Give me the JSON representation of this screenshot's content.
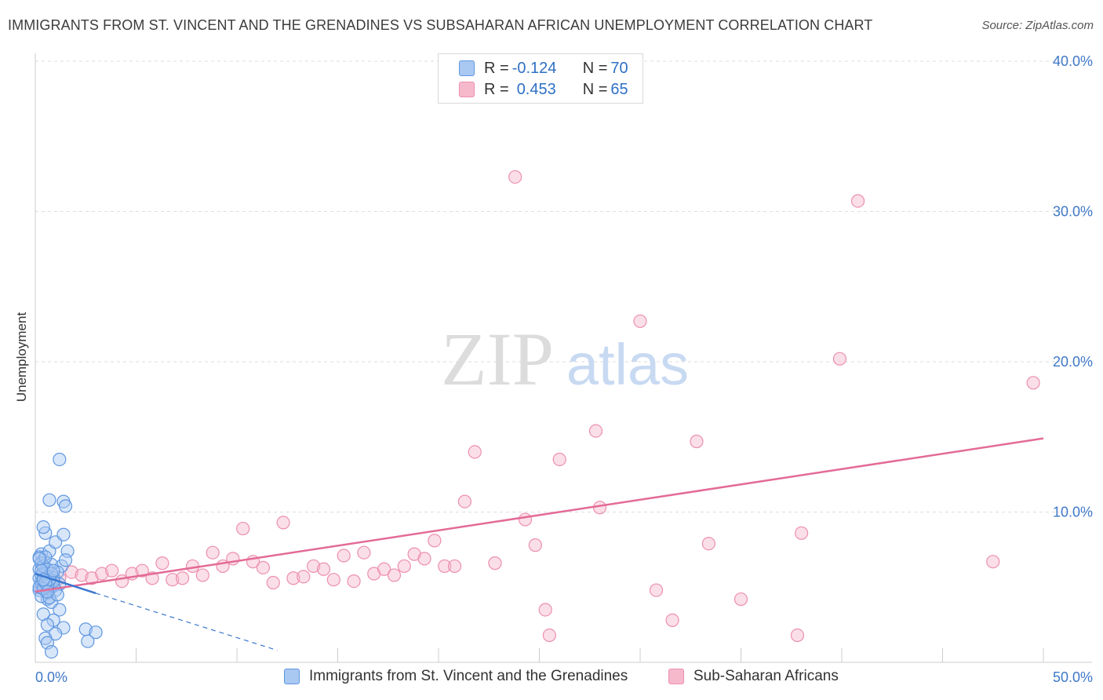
{
  "title": "IMMIGRANTS FROM ST. VINCENT AND THE GRENADINES VS SUBSAHARAN AFRICAN UNEMPLOYMENT CORRELATION CHART",
  "source": "Source: ZipAtlas.com",
  "watermark": {
    "zip": "ZIP",
    "atlas": "atlas"
  },
  "legend_top": {
    "rows": [
      {
        "r_label": "R = ",
        "r_value": "-0.124",
        "n_label": "N = ",
        "n_value": "70"
      },
      {
        "r_label": "R = ",
        "r_value": "0.453",
        "n_label": "N = ",
        "n_value": "65"
      }
    ]
  },
  "legend_bottom": {
    "items": [
      {
        "label": "Immigrants from St. Vincent and the Grenadines"
      },
      {
        "label": "Sub-Saharan Africans"
      }
    ]
  },
  "colors": {
    "blue_fill": "#a9c8f2",
    "blue_stroke": "#5f97e0",
    "blue_line": "#3a78d0",
    "pink_fill": "#f6b9cc",
    "pink_stroke": "#ec8fae",
    "pink_line": "#e36b97",
    "axis_text": "#3f78c8",
    "grid": "#dddddd"
  },
  "chart_data": {
    "type": "scatter",
    "title": "IMMIGRANTS FROM ST. VINCENT AND THE GRENADINES VS SUBSAHARAN AFRICAN UNEMPLOYMENT CORRELATION CHART",
    "xlabel": "",
    "ylabel": "Unemployment",
    "xlim": [
      0,
      50
    ],
    "ylim": [
      0,
      40
    ],
    "x_tick_labels": [
      "0.0%",
      "50.0%"
    ],
    "y_ticks": [
      10,
      20,
      30,
      40
    ],
    "y_tick_labels": [
      "10.0%",
      "20.0%",
      "30.0%",
      "40.0%"
    ],
    "grid": true,
    "legend_placement": "bottom",
    "series": [
      {
        "name": "Immigrants from St. Vincent and the Grenadines",
        "r": -0.124,
        "n": 70,
        "trend": {
          "x": [
            0,
            3.0
          ],
          "y": [
            5.9,
            4.6
          ]
        },
        "trend_extension": {
          "x": [
            3.0,
            12.0
          ],
          "y": [
            4.6,
            0.8
          ]
        },
        "points": [
          [
            0.3,
            5.4
          ],
          [
            0.5,
            5.8
          ],
          [
            0.2,
            6.2
          ],
          [
            0.8,
            5.0
          ],
          [
            0.6,
            4.6
          ],
          [
            0.4,
            6.8
          ],
          [
            1.2,
            5.2
          ],
          [
            0.3,
            7.2
          ],
          [
            0.7,
            7.4
          ],
          [
            0.5,
            8.6
          ],
          [
            0.4,
            9.0
          ],
          [
            1.0,
            8.0
          ],
          [
            1.4,
            8.5
          ],
          [
            1.6,
            7.4
          ],
          [
            1.3,
            6.4
          ],
          [
            1.1,
            6.0
          ],
          [
            0.9,
            5.6
          ],
          [
            0.2,
            4.8
          ],
          [
            0.6,
            4.2
          ],
          [
            0.8,
            4.0
          ],
          [
            1.2,
            3.5
          ],
          [
            0.4,
            3.2
          ],
          [
            0.9,
            2.8
          ],
          [
            0.6,
            2.5
          ],
          [
            1.4,
            2.3
          ],
          [
            1.0,
            1.9
          ],
          [
            0.5,
            1.6
          ],
          [
            0.6,
            1.3
          ],
          [
            0.8,
            0.7
          ],
          [
            2.5,
            2.2
          ],
          [
            3.0,
            2.0
          ],
          [
            2.6,
            1.4
          ],
          [
            1.2,
            13.5
          ],
          [
            0.7,
            10.8
          ],
          [
            1.4,
            10.7
          ],
          [
            1.5,
            10.4
          ],
          [
            0.3,
            5.2
          ],
          [
            0.5,
            5.0
          ],
          [
            0.2,
            5.6
          ],
          [
            0.4,
            6.0
          ],
          [
            0.6,
            6.2
          ],
          [
            0.8,
            5.3
          ],
          [
            1.0,
            4.8
          ],
          [
            0.3,
            4.4
          ],
          [
            0.7,
            4.9
          ],
          [
            0.9,
            5.1
          ],
          [
            0.2,
            7.0
          ],
          [
            0.3,
            6.6
          ],
          [
            0.4,
            5.9
          ],
          [
            0.5,
            5.4
          ],
          [
            0.6,
            5.7
          ],
          [
            0.7,
            4.3
          ],
          [
            0.8,
            6.5
          ],
          [
            0.9,
            5.4
          ],
          [
            1.1,
            4.5
          ],
          [
            0.2,
            5.0
          ],
          [
            0.3,
            5.8
          ],
          [
            0.4,
            6.4
          ],
          [
            0.5,
            7.0
          ],
          [
            0.6,
            5.1
          ],
          [
            0.7,
            5.5
          ],
          [
            0.8,
            5.9
          ],
          [
            0.3,
            6.1
          ],
          [
            0.4,
            4.9
          ],
          [
            0.5,
            5.3
          ],
          [
            0.2,
            6.9
          ],
          [
            0.6,
            4.7
          ],
          [
            1.5,
            6.8
          ],
          [
            0.9,
            6.1
          ],
          [
            0.4,
            5.5
          ]
        ]
      },
      {
        "name": "Sub-Saharan Africans",
        "r": 0.453,
        "n": 65,
        "trend": {
          "x": [
            0,
            50
          ],
          "y": [
            4.7,
            14.9
          ]
        },
        "points": [
          [
            0.3,
            5.0
          ],
          [
            0.8,
            5.4
          ],
          [
            1.2,
            5.6
          ],
          [
            1.8,
            6.0
          ],
          [
            2.3,
            5.8
          ],
          [
            2.8,
            5.6
          ],
          [
            3.3,
            5.9
          ],
          [
            3.8,
            6.1
          ],
          [
            4.3,
            5.4
          ],
          [
            4.8,
            5.9
          ],
          [
            5.3,
            6.1
          ],
          [
            5.8,
            5.6
          ],
          [
            6.3,
            6.6
          ],
          [
            6.8,
            5.5
          ],
          [
            7.3,
            5.6
          ],
          [
            7.8,
            6.4
          ],
          [
            8.3,
            5.8
          ],
          [
            8.8,
            7.3
          ],
          [
            9.3,
            6.4
          ],
          [
            9.8,
            6.9
          ],
          [
            10.3,
            8.9
          ],
          [
            10.8,
            6.7
          ],
          [
            11.3,
            6.3
          ],
          [
            11.8,
            5.3
          ],
          [
            12.3,
            9.3
          ],
          [
            12.8,
            5.6
          ],
          [
            13.3,
            5.7
          ],
          [
            13.8,
            6.4
          ],
          [
            14.3,
            6.2
          ],
          [
            14.8,
            5.5
          ],
          [
            15.3,
            7.1
          ],
          [
            15.8,
            5.4
          ],
          [
            16.3,
            7.3
          ],
          [
            16.8,
            5.9
          ],
          [
            17.3,
            6.2
          ],
          [
            17.8,
            5.8
          ],
          [
            18.3,
            6.4
          ],
          [
            18.8,
            7.2
          ],
          [
            19.3,
            6.9
          ],
          [
            19.8,
            8.1
          ],
          [
            20.3,
            6.4
          ],
          [
            20.8,
            6.4
          ],
          [
            21.3,
            10.7
          ],
          [
            21.8,
            14.0
          ],
          [
            22.8,
            6.6
          ],
          [
            23.8,
            32.3
          ],
          [
            24.3,
            9.5
          ],
          [
            24.8,
            7.8
          ],
          [
            25.3,
            3.5
          ],
          [
            25.5,
            1.8
          ],
          [
            26.0,
            13.5
          ],
          [
            27.8,
            15.4
          ],
          [
            28.0,
            10.3
          ],
          [
            30.0,
            22.7
          ],
          [
            30.8,
            4.8
          ],
          [
            31.6,
            2.8
          ],
          [
            32.8,
            14.7
          ],
          [
            33.4,
            7.9
          ],
          [
            35.0,
            4.2
          ],
          [
            38.0,
            8.6
          ],
          [
            37.8,
            1.8
          ],
          [
            39.9,
            20.2
          ],
          [
            40.8,
            30.7
          ],
          [
            47.5,
            6.7
          ],
          [
            49.5,
            18.6
          ]
        ]
      }
    ]
  }
}
